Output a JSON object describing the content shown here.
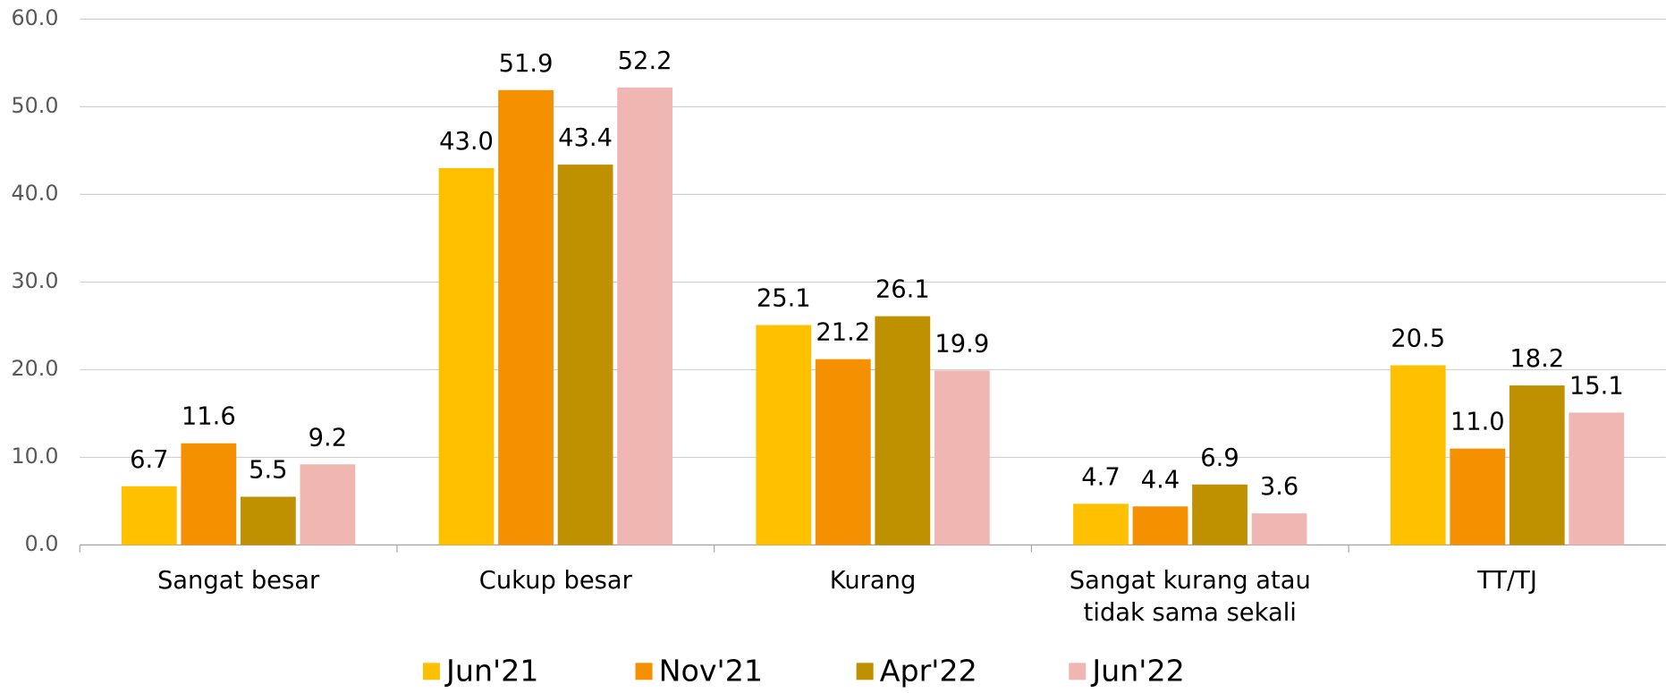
{
  "chart_data": {
    "type": "bar",
    "categories": [
      "Sangat besar",
      "Cukup besar",
      "Kurang",
      "Sangat kurang atau tidak sama sekali",
      "TT/TJ"
    ],
    "series": [
      {
        "name": "Jun'21",
        "color": "#FFC000",
        "values": [
          6.7,
          43.0,
          25.1,
          4.7,
          20.5
        ],
        "value_labels": [
          "6.7",
          "43.0",
          "25.1",
          "4.7",
          "20.5"
        ]
      },
      {
        "name": "Nov'21",
        "color": "#F59000",
        "values": [
          11.6,
          51.9,
          21.2,
          4.4,
          11.0
        ],
        "value_labels": [
          "11.6",
          "51.9",
          "21.2",
          "4.4",
          "11.0"
        ]
      },
      {
        "name": "Apr'22",
        "color": "#BF9000",
        "values": [
          5.5,
          43.4,
          26.1,
          6.9,
          18.2
        ],
        "value_labels": [
          "5.5",
          "43.4",
          "26.1",
          "6.9",
          "18.2"
        ]
      },
      {
        "name": "Jun'22",
        "color": "#EFB6B2",
        "values": [
          9.2,
          52.2,
          19.9,
          3.6,
          15.1
        ],
        "value_labels": [
          "9.2",
          "52.2",
          "19.9",
          "3.6",
          "15.1"
        ]
      }
    ],
    "ylim": [
      0,
      60
    ],
    "yticks": [
      {
        "value": 0,
        "label": "0.0"
      },
      {
        "value": 10,
        "label": "10.0"
      },
      {
        "value": 20,
        "label": "20.0"
      },
      {
        "value": 30,
        "label": "30.0"
      },
      {
        "value": 40,
        "label": "40.0"
      },
      {
        "value": 50,
        "label": "50.0"
      },
      {
        "value": 60,
        "label": "60.0"
      }
    ],
    "grid": true,
    "legend": "bottom"
  }
}
